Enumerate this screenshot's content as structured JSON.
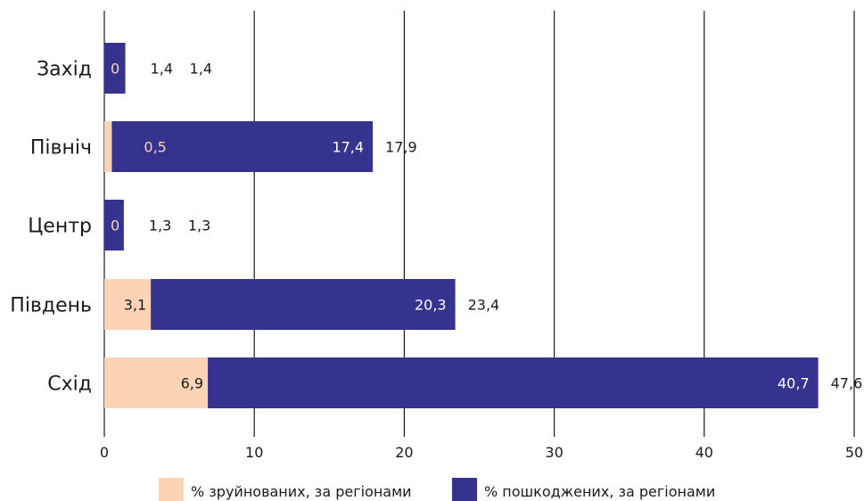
{
  "chart_data": {
    "type": "bar",
    "orientation": "horizontal",
    "stacked": true,
    "categories": [
      "Захід",
      "Північ",
      "Центр",
      "Південь",
      "Схід"
    ],
    "series": [
      {
        "name": "% зруйнованих, за регіонами",
        "color": "#fcd3b4",
        "label_color_on_dark": "#fcd3b4",
        "values": [
          0,
          0.5,
          0,
          3.1,
          6.9
        ],
        "labels": [
          "0",
          "0,5",
          "0",
          "3,1",
          "6,9"
        ]
      },
      {
        "name": "% пошкоджених, за регіонами",
        "color": "#35338e",
        "values": [
          1.4,
          17.4,
          1.3,
          20.3,
          40.7
        ],
        "labels": [
          "1,4",
          "17,4",
          "1,3",
          "20,3",
          "40,7"
        ]
      }
    ],
    "totals": [
      1.4,
      17.9,
      1.3,
      23.4,
      47.6
    ],
    "total_labels": [
      "1,4",
      "17,9",
      "1,3",
      "23,4",
      "47,6"
    ],
    "xlim": [
      0,
      50
    ],
    "xticks": [
      0,
      10,
      20,
      30,
      40,
      50
    ],
    "xtick_labels": [
      "0",
      "10",
      "20",
      "30",
      "40",
      "50"
    ],
    "grid": "vertical",
    "legend_position": "bottom-center",
    "title": "",
    "xlabel": "",
    "ylabel": ""
  }
}
